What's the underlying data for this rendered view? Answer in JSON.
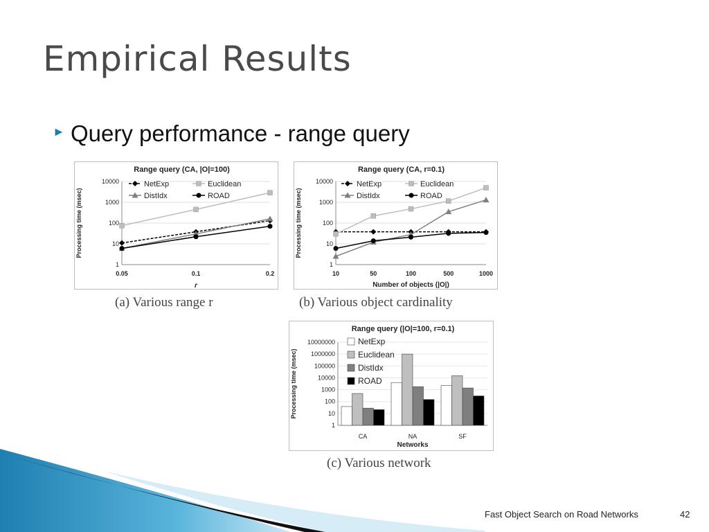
{
  "slide": {
    "title": "Empirical Results",
    "bullet": "Query performance - range query",
    "footer": "Fast Object Search on Road Networks",
    "page": "42",
    "accent_color": "#1f7fb0",
    "bullet_icon": "triangle-right-icon"
  },
  "captions": {
    "a": "(a) Various range r",
    "b": "(b) Various object cardinality",
    "c": "(c) Various network"
  },
  "chart_data": [
    {
      "type": "line",
      "title": "Range query (CA, |O|=100)",
      "xlabel": "r",
      "ylabel": "Processing time (msec)",
      "yscale": "log",
      "ylim": [
        1,
        10000
      ],
      "yticks": [
        "1",
        "10",
        "100",
        "1000",
        "10000"
      ],
      "categories": [
        "0.05",
        "0.1",
        "0.2"
      ],
      "legend": "top",
      "series": [
        {
          "name": "NetExp",
          "values": [
            11,
            38,
            130
          ],
          "color": "#000000",
          "dashed": true,
          "marker": "diamond"
        },
        {
          "name": "Euclidean",
          "values": [
            75,
            450,
            2900
          ],
          "color": "#bdbdbd",
          "dashed": false,
          "marker": "square"
        },
        {
          "name": "DistIdx",
          "values": [
            6,
            30,
            160
          ],
          "color": "#7f7f7f",
          "dashed": false,
          "marker": "triangle"
        },
        {
          "name": "ROAD",
          "values": [
            6,
            22,
            70
          ],
          "color": "#000000",
          "dashed": false,
          "marker": "circle"
        }
      ]
    },
    {
      "type": "line",
      "title": "Range query (CA, r=0.1)",
      "xlabel": "Number of objects (|O|)",
      "ylabel": "Processing time (msec)",
      "yscale": "log",
      "ylim": [
        1,
        10000
      ],
      "yticks": [
        "1",
        "10",
        "100",
        "1000",
        "10000"
      ],
      "categories": [
        "10",
        "50",
        "100",
        "500",
        "1000"
      ],
      "legend": "top",
      "series": [
        {
          "name": "NetExp",
          "values": [
            38,
            38,
            38,
            38,
            38
          ],
          "color": "#000000",
          "dashed": true,
          "marker": "diamond"
        },
        {
          "name": "Euclidean",
          "values": [
            30,
            220,
            480,
            1150,
            5000
          ],
          "color": "#bdbdbd",
          "dashed": false,
          "marker": "square"
        },
        {
          "name": "DistIdx",
          "values": [
            2.5,
            12,
            28,
            350,
            1300
          ],
          "color": "#7f7f7f",
          "dashed": false,
          "marker": "triangle"
        },
        {
          "name": "ROAD",
          "values": [
            6,
            14,
            21,
            32,
            35
          ],
          "color": "#000000",
          "dashed": false,
          "marker": "circle"
        }
      ]
    },
    {
      "type": "bar",
      "title": "Range query (|O|=100, r=0.1)",
      "xlabel": "Networks",
      "ylabel": "Processing time (msec)",
      "yscale": "log",
      "ylim": [
        1,
        10000000
      ],
      "yticks": [
        "1",
        "10",
        "100",
        "1000",
        "10000",
        "100000",
        "1000000",
        "10000000"
      ],
      "categories": [
        "CA",
        "NA",
        "SF"
      ],
      "legend": "top-left",
      "series": [
        {
          "name": "NetExp",
          "values": [
            38,
            4000,
            2200
          ],
          "color": "#ffffff"
        },
        {
          "name": "Euclidean",
          "values": [
            480,
            1000000,
            15000
          ],
          "color": "#bfbfbf"
        },
        {
          "name": "DistIdx",
          "values": [
            28,
            1800,
            1400
          ],
          "color": "#7f7f7f"
        },
        {
          "name": "ROAD",
          "values": [
            21,
            150,
            300
          ],
          "color": "#000000"
        }
      ]
    }
  ]
}
